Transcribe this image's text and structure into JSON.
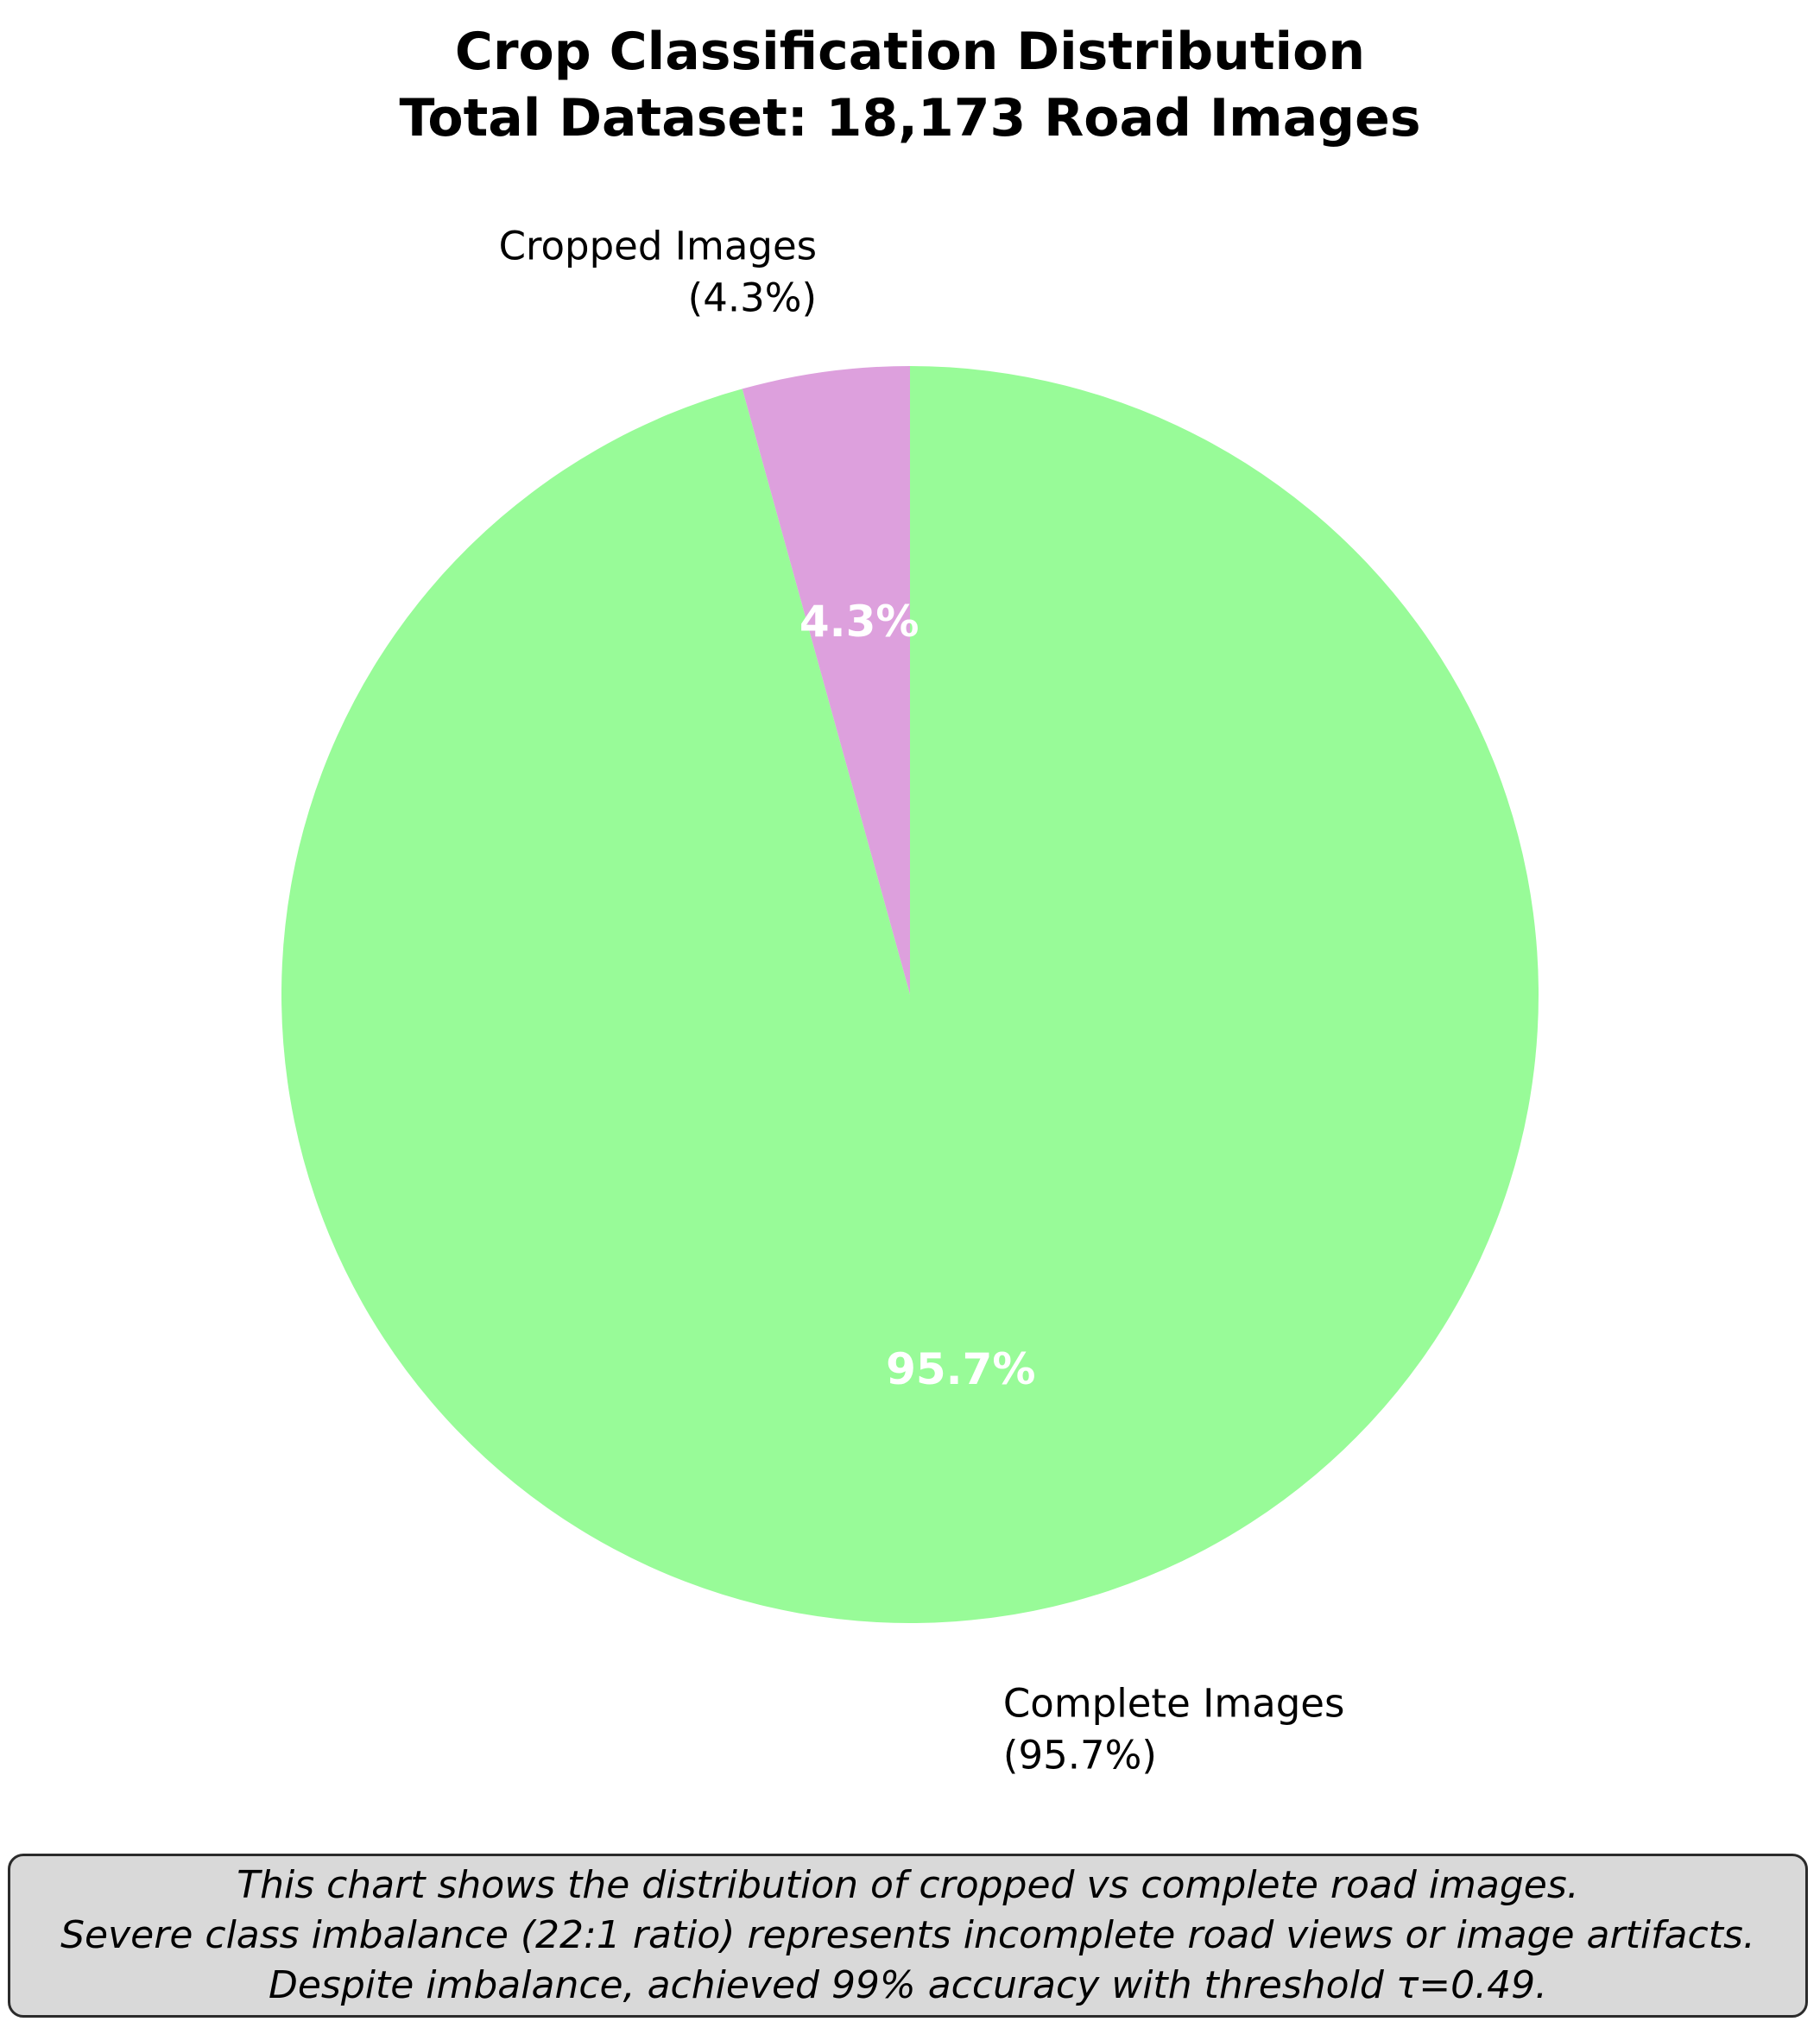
{
  "chart_data": {
    "type": "pie",
    "title": "Crop Classification Distribution",
    "subtitle": "Total Dataset: 18,173 Road Images",
    "slices": [
      {
        "name": "Cropped Images",
        "label_pct": "(4.3%)",
        "inner_pct": "4.3%",
        "value": 4.3,
        "color": "#dda0dd"
      },
      {
        "name": "Complete Images",
        "label_pct": "(95.7%)",
        "inner_pct": "95.7%",
        "value": 95.7,
        "color": "#98fb98"
      }
    ],
    "start_angle_deg": 90,
    "direction": "counterclockwise",
    "legend": "none"
  },
  "note": {
    "lines": [
      "This chart shows the distribution of cropped vs complete road images.",
      "Severe class imbalance (22:1 ratio) represents incomplete road views or image artifacts.",
      "Despite imbalance, achieved 99% accuracy with threshold τ=0.49."
    ]
  }
}
